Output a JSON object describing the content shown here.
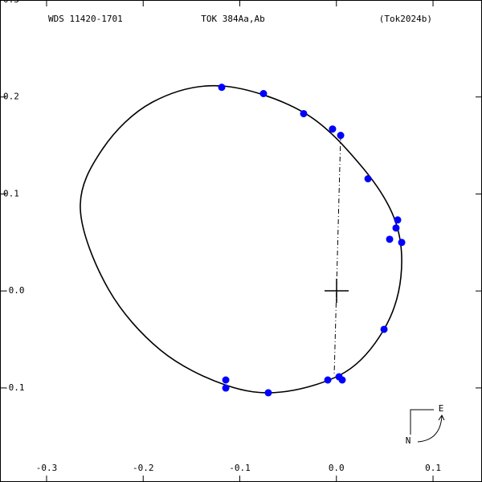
{
  "chart_data": {
    "type": "scatter",
    "title": "TOK 384Aa,Ab",
    "left_label": "WDS 11420-1701",
    "right_label": "(Tok2024b)",
    "x": [
      -0.1187,
      -0.0755,
      -0.0339,
      -0.004,
      0.0044,
      0.0327,
      0.0634,
      0.0617,
      0.0551,
      0.0676,
      0.0493,
      -0.1145,
      -0.1145,
      -0.0705,
      -0.0089,
      0.0027,
      0.006
    ],
    "values": [
      0.21,
      0.2035,
      0.1828,
      0.167,
      0.1604,
      0.1157,
      0.0732,
      0.0649,
      0.0533,
      0.05,
      -0.0396,
      -0.0918,
      -0.1001,
      -0.105,
      -0.0918,
      -0.0885,
      -0.0918
    ],
    "color": "#0000ff",
    "xlim": [
      -0.3482,
      0.1507
    ],
    "ylim": [
      -0.197,
      0.3
    ],
    "xticks": [
      -0.3,
      -0.2,
      -0.1,
      {
        "value": 0,
        "label": "0.0"
      },
      0.1
    ],
    "yticks": [
      0.3,
      0.2,
      0.1,
      {
        "value": 0,
        "label": "-0.0"
      },
      -0.1
    ]
  },
  "compass": {
    "east": "E",
    "north": "N"
  }
}
